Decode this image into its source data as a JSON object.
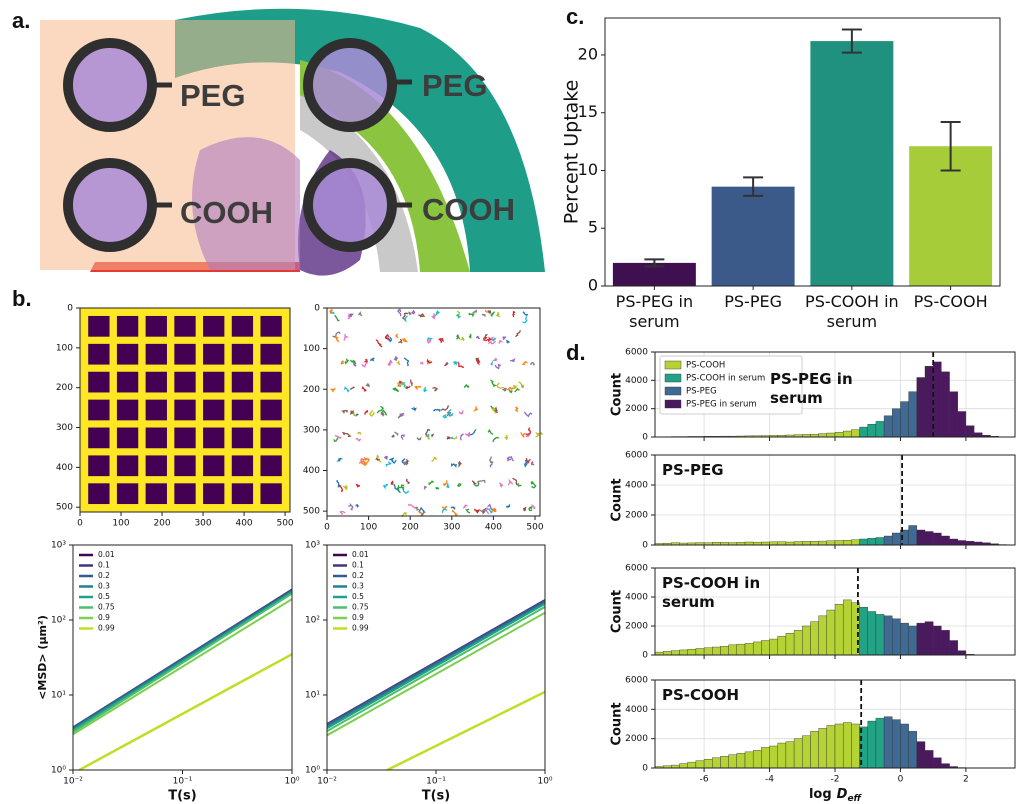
{
  "panel_labels": [
    "a.",
    "b.",
    "c.",
    "d."
  ],
  "diagram": {
    "labels": [
      "PEG",
      "PEG",
      "COOH",
      "COOH"
    ]
  },
  "chart_data": [
    {
      "type": "bar",
      "ylabel": "Percent Uptake",
      "categories": [
        "PS-PEG in serum",
        "PS-PEG",
        "PS-COOH in serum",
        "PS-COOH"
      ],
      "values": [
        2.0,
        8.6,
        21.2,
        12.1
      ],
      "errors": [
        0.3,
        0.8,
        1.0,
        2.1
      ],
      "colors": [
        "#3f0f4f",
        "#3b5a8a",
        "#20907f",
        "#a6cc3a"
      ],
      "ylim": [
        0,
        23.2
      ],
      "yticks": [
        0,
        5,
        10,
        15,
        20
      ]
    },
    {
      "type": "image",
      "colors": [
        "#fde725",
        "#440154"
      ],
      "xlim": [
        0,
        512
      ],
      "ylim": [
        0,
        512
      ],
      "y_inverted": true,
      "xticks": [
        0,
        100,
        200,
        300,
        400,
        500
      ],
      "yticks": [
        0,
        100,
        200,
        300,
        400,
        500
      ]
    },
    {
      "type": "tracks",
      "xlim": [
        0,
        512
      ],
      "ylim": [
        0,
        512
      ],
      "y_inverted": true,
      "xticks": [
        0,
        100,
        200,
        300,
        400,
        500
      ],
      "yticks": [
        0,
        100,
        200,
        300,
        400,
        500
      ]
    },
    {
      "type": "line",
      "log_x": true,
      "log_y": true,
      "xlabel": "T(s)",
      "ylabel": "<MSD> (μm²)",
      "xlim": [
        0.01,
        1
      ],
      "ylim": [
        1,
        1000
      ],
      "xticks": [
        {
          "value": 0.01,
          "label": "10⁻²"
        },
        {
          "value": 0.1,
          "label": "10⁻¹"
        },
        {
          "value": 1,
          "label": "10⁰"
        }
      ],
      "yticks": [
        {
          "value": 1,
          "label": "10⁰"
        },
        {
          "value": 10,
          "label": "10¹"
        },
        {
          "value": 100,
          "label": "10²"
        },
        {
          "value": 1000,
          "label": "10³"
        }
      ],
      "x": [
        0.01,
        1
      ],
      "series": [
        {
          "name": "0.01",
          "color": "#440154",
          "values": [
            3.6,
            250
          ]
        },
        {
          "name": "0.1",
          "color": "#46327e",
          "values": [
            3.7,
            255
          ]
        },
        {
          "name": "0.2",
          "color": "#365c8d",
          "values": [
            3.7,
            250
          ]
        },
        {
          "name": "0.3",
          "color": "#277f8e",
          "values": [
            3.5,
            240
          ]
        },
        {
          "name": "0.5",
          "color": "#1fa187",
          "values": [
            3.4,
            235
          ]
        },
        {
          "name": "0.75",
          "color": "#4ac16d",
          "values": [
            3.2,
            225
          ]
        },
        {
          "name": "0.9",
          "color": "#7ccf4f",
          "values": [
            3.0,
            190
          ]
        },
        {
          "name": "0.99",
          "color": "#bddf26",
          "values": [
            0.9,
            35
          ]
        }
      ]
    },
    {
      "type": "line",
      "log_x": true,
      "log_y": true,
      "xlabel": "T(s)",
      "xlim": [
        0.01,
        1
      ],
      "ylim": [
        1,
        1000
      ],
      "xticks": [
        {
          "value": 0.01,
          "label": "10⁻²"
        },
        {
          "value": 0.1,
          "label": "10⁻¹"
        },
        {
          "value": 1,
          "label": "10⁰"
        }
      ],
      "yticks": [
        {
          "value": 1,
          "label": "10⁰"
        },
        {
          "value": 10,
          "label": "10¹"
        },
        {
          "value": 100,
          "label": "10²"
        },
        {
          "value": 1000,
          "label": "10³"
        }
      ],
      "x": [
        0.01,
        1
      ],
      "series": [
        {
          "name": "0.01",
          "color": "#440154",
          "values": [
            4.0,
            180
          ]
        },
        {
          "name": "0.1",
          "color": "#46327e",
          "values": [
            4.1,
            185
          ]
        },
        {
          "name": "0.2",
          "color": "#365c8d",
          "values": [
            4.0,
            180
          ]
        },
        {
          "name": "0.3",
          "color": "#277f8e",
          "values": [
            3.8,
            170
          ]
        },
        {
          "name": "0.5",
          "color": "#1fa187",
          "values": [
            3.6,
            165
          ]
        },
        {
          "name": "0.75",
          "color": "#4ac16d",
          "values": [
            3.3,
            150
          ]
        },
        {
          "name": "0.9",
          "color": "#7ccf4f",
          "values": [
            2.9,
            125
          ]
        },
        {
          "name": "0.99",
          "color": "#bddf26",
          "values": [
            0.4,
            11
          ]
        }
      ]
    },
    {
      "type": "histogram",
      "title": "PS-PEG in serum",
      "ylabel": "Count",
      "mean": 1.0,
      "xlim": [
        -7.5,
        3.5
      ],
      "ylim": [
        0,
        6000
      ],
      "xticks": [
        -6,
        -4,
        -2,
        0,
        2
      ],
      "yticks": [
        0,
        2000,
        4000,
        6000
      ],
      "series": [
        {
          "name": "PS-COOH",
          "color": "#b5d334",
          "bins": [
            -7.5,
            -7.25,
            -7,
            -6.75,
            -6.5,
            -6.25,
            -6,
            -5.75,
            -5.5,
            -5.25,
            -5,
            -4.75,
            -4.5,
            -4.25,
            -4,
            -3.75,
            -3.5,
            -3.25,
            -3,
            -2.75,
            -2.5,
            -2.25,
            -2,
            -1.75,
            -1.5,
            -1.25
          ],
          "counts": [
            20,
            20,
            30,
            30,
            40,
            40,
            50,
            50,
            60,
            60,
            70,
            80,
            90,
            100,
            110,
            120,
            140,
            160,
            180,
            200,
            240,
            280,
            340,
            420,
            520
          ]
        },
        {
          "name": "PS-COOH in serum",
          "color": "#22a386",
          "bins": [
            -1.25,
            -1,
            -0.75,
            -0.5
          ],
          "counts": [
            700,
            900,
            1100
          ]
        },
        {
          "name": "PS-PEG",
          "color": "#3e6a94",
          "bins": [
            -0.5,
            -0.25,
            0,
            0.25,
            0.5
          ],
          "counts": [
            1500,
            2000,
            2500,
            3200
          ]
        },
        {
          "name": "PS-PEG in serum",
          "color": "#4b1a5e",
          "bins": [
            0.5,
            0.75,
            1,
            1.25,
            1.5,
            1.75,
            2,
            2.25,
            2.5,
            2.75,
            3,
            3.25,
            3.5
          ],
          "counts": [
            4200,
            5000,
            5300,
            4600,
            3200,
            1800,
            800,
            300,
            120,
            50,
            20,
            0
          ]
        }
      ]
    },
    {
      "type": "histogram",
      "title": "PS-PEG",
      "ylabel": "Count",
      "mean": 0.05,
      "xlim": [
        -7.5,
        3.5
      ],
      "ylim": [
        0,
        6000
      ],
      "xticks": [
        -6,
        -4,
        -2,
        0,
        2
      ],
      "yticks": [
        0,
        2000,
        4000,
        6000
      ],
      "series": [
        {
          "color": "#b5d334",
          "bins": [
            -7.5,
            -7.25,
            -7,
            -6.75,
            -6.5,
            -6.25,
            -6,
            -5.75,
            -5.5,
            -5.25,
            -5,
            -4.75,
            -4.5,
            -4.25,
            -4,
            -3.75,
            -3.5,
            -3.25,
            -3,
            -2.75,
            -2.5,
            -2.25,
            -2,
            -1.75,
            -1.5,
            -1.25
          ],
          "counts": [
            100,
            120,
            150,
            130,
            140,
            160,
            150,
            180,
            170,
            160,
            180,
            200,
            190,
            200,
            210,
            220,
            200,
            230,
            240,
            250,
            260,
            280,
            300,
            320,
            350
          ]
        },
        {
          "color": "#22a386",
          "bins": [
            -1.25,
            -1,
            -0.75,
            -0.5
          ],
          "counts": [
            400,
            450,
            500
          ]
        },
        {
          "color": "#3e6a94",
          "bins": [
            -0.5,
            -0.25,
            0,
            0.25,
            0.5
          ],
          "counts": [
            600,
            800,
            1000,
            1300
          ]
        },
        {
          "color": "#4b1a5e",
          "bins": [
            0.5,
            0.75,
            1,
            1.25,
            1.5,
            1.75,
            2,
            2.25,
            2.5,
            2.75,
            3,
            3.25,
            3.5
          ],
          "counts": [
            1000,
            900,
            800,
            600,
            400,
            300,
            250,
            200,
            150,
            80,
            30,
            0
          ]
        }
      ]
    },
    {
      "type": "histogram",
      "title": "PS-COOH in serum",
      "ylabel": "Count",
      "mean": -1.3,
      "xlim": [
        -7.5,
        3.5
      ],
      "ylim": [
        0,
        6000
      ],
      "xticks": [
        -6,
        -4,
        -2,
        0,
        2
      ],
      "yticks": [
        0,
        2000,
        4000,
        6000
      ],
      "series": [
        {
          "color": "#b5d334",
          "bins": [
            -7.5,
            -7.25,
            -7,
            -6.75,
            -6.5,
            -6.25,
            -6,
            -5.75,
            -5.5,
            -5.25,
            -5,
            -4.75,
            -4.5,
            -4.25,
            -4,
            -3.75,
            -3.5,
            -3.25,
            -3,
            -2.75,
            -2.5,
            -2.25,
            -2,
            -1.75,
            -1.5,
            -1.25
          ],
          "counts": [
            200,
            250,
            300,
            350,
            400,
            450,
            500,
            550,
            600,
            700,
            750,
            800,
            900,
            1000,
            1100,
            1300,
            1500,
            1700,
            2000,
            2300,
            2700,
            3100,
            3500,
            3800,
            3600
          ]
        },
        {
          "color": "#22a386",
          "bins": [
            -1.25,
            -1,
            -0.75,
            -0.5
          ],
          "counts": [
            3300,
            3000,
            2800
          ]
        },
        {
          "color": "#3e6a94",
          "bins": [
            -0.5,
            -0.25,
            0,
            0.25,
            0.5
          ],
          "counts": [
            2700,
            2500,
            2200,
            2000
          ]
        },
        {
          "color": "#4b1a5e",
          "bins": [
            0.5,
            0.75,
            1,
            1.25,
            1.5,
            1.75,
            2,
            2.25,
            2.5,
            2.75,
            3,
            3.25,
            3.5
          ],
          "counts": [
            2200,
            2300,
            2000,
            1700,
            1000,
            300,
            50,
            0,
            0,
            0,
            0,
            0
          ]
        }
      ]
    },
    {
      "type": "histogram",
      "title": "PS-COOH",
      "ylabel": "Count",
      "mean": -1.2,
      "xlabel": "log",
      "xlabel_symbol": "D",
      "xlabel_subscript": "eff",
      "xlim": [
        -7.5,
        3.5
      ],
      "ylim": [
        0,
        6000
      ],
      "xticks": [
        -6,
        -4,
        -2,
        0,
        2
      ],
      "yticks": [
        0,
        2000,
        4000,
        6000
      ],
      "series": [
        {
          "color": "#b5d334",
          "bins": [
            -7.5,
            -7.25,
            -7,
            -6.75,
            -6.5,
            -6.25,
            -6,
            -5.75,
            -5.5,
            -5.25,
            -5,
            -4.75,
            -4.5,
            -4.25,
            -4,
            -3.75,
            -3.5,
            -3.25,
            -3,
            -2.75,
            -2.5,
            -2.25,
            -2,
            -1.75,
            -1.5,
            -1.25
          ],
          "counts": [
            100,
            150,
            200,
            300,
            400,
            500,
            600,
            700,
            800,
            900,
            1000,
            1100,
            1200,
            1400,
            1500,
            1700,
            1800,
            2000,
            2200,
            2500,
            2700,
            2900,
            3000,
            3100,
            3000
          ]
        },
        {
          "color": "#22a386",
          "bins": [
            -1.25,
            -1,
            -0.75,
            -0.5
          ],
          "counts": [
            2800,
            3200,
            3400
          ]
        },
        {
          "color": "#3e6a94",
          "bins": [
            -0.5,
            -0.25,
            0,
            0.25,
            0.5
          ],
          "counts": [
            3500,
            3300,
            3000,
            2500
          ]
        },
        {
          "color": "#4b1a5e",
          "bins": [
            0.5,
            0.75,
            1,
            1.25,
            1.5,
            1.75,
            2,
            2.25,
            2.5,
            2.75,
            3,
            3.25,
            3.5
          ],
          "counts": [
            1800,
            1200,
            700,
            300,
            100,
            30,
            0,
            0,
            0,
            0,
            0,
            0
          ]
        }
      ]
    }
  ]
}
